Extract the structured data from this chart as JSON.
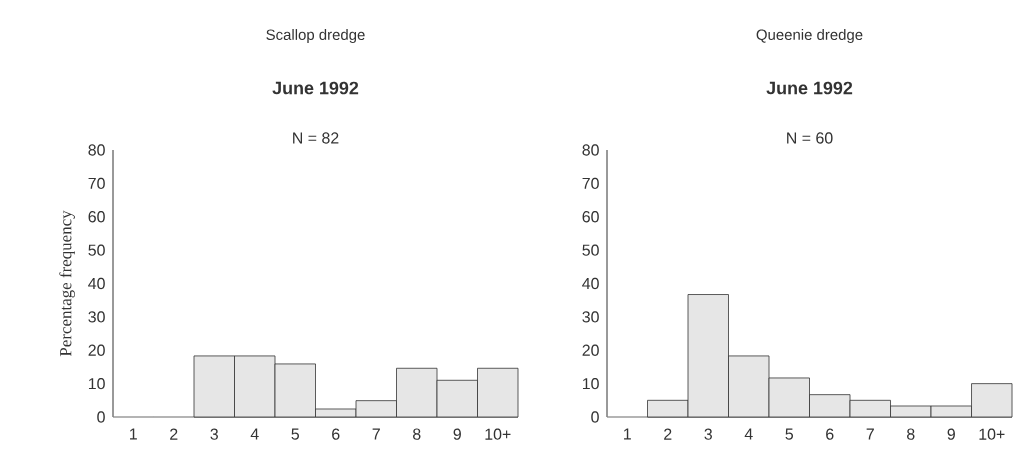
{
  "chart_data": [
    {
      "type": "bar",
      "title": "Scallop dredge",
      "subtitle": "June 1992",
      "annotations": [
        "N = 82"
      ],
      "ylabel": "Percentage frequency",
      "categories": [
        "1",
        "2",
        "3",
        "4",
        "5",
        "6",
        "7",
        "8",
        "9",
        "10+"
      ],
      "values": [
        0,
        0,
        18.3,
        18.3,
        15.9,
        2.4,
        4.9,
        14.6,
        11.0,
        14.6
      ],
      "color": "#e6e6e6",
      "ylim": [
        0,
        80
      ],
      "yticks": [
        0,
        10,
        20,
        30,
        40,
        50,
        60,
        70,
        80
      ]
    },
    {
      "type": "bar",
      "title": "Queenie dredge",
      "subtitle": "June 1992",
      "annotations": [
        "N = 60"
      ],
      "categories": [
        "1",
        "2",
        "3",
        "4",
        "5",
        "6",
        "7",
        "8",
        "9",
        "10+"
      ],
      "values": [
        0,
        5.0,
        36.7,
        18.3,
        11.7,
        6.7,
        5.0,
        3.3,
        3.3,
        10.0
      ],
      "color": "#e6e6e6",
      "ylim": [
        0,
        80
      ],
      "yticks": [
        0,
        10,
        20,
        30,
        40,
        50,
        60,
        70,
        80
      ]
    }
  ]
}
